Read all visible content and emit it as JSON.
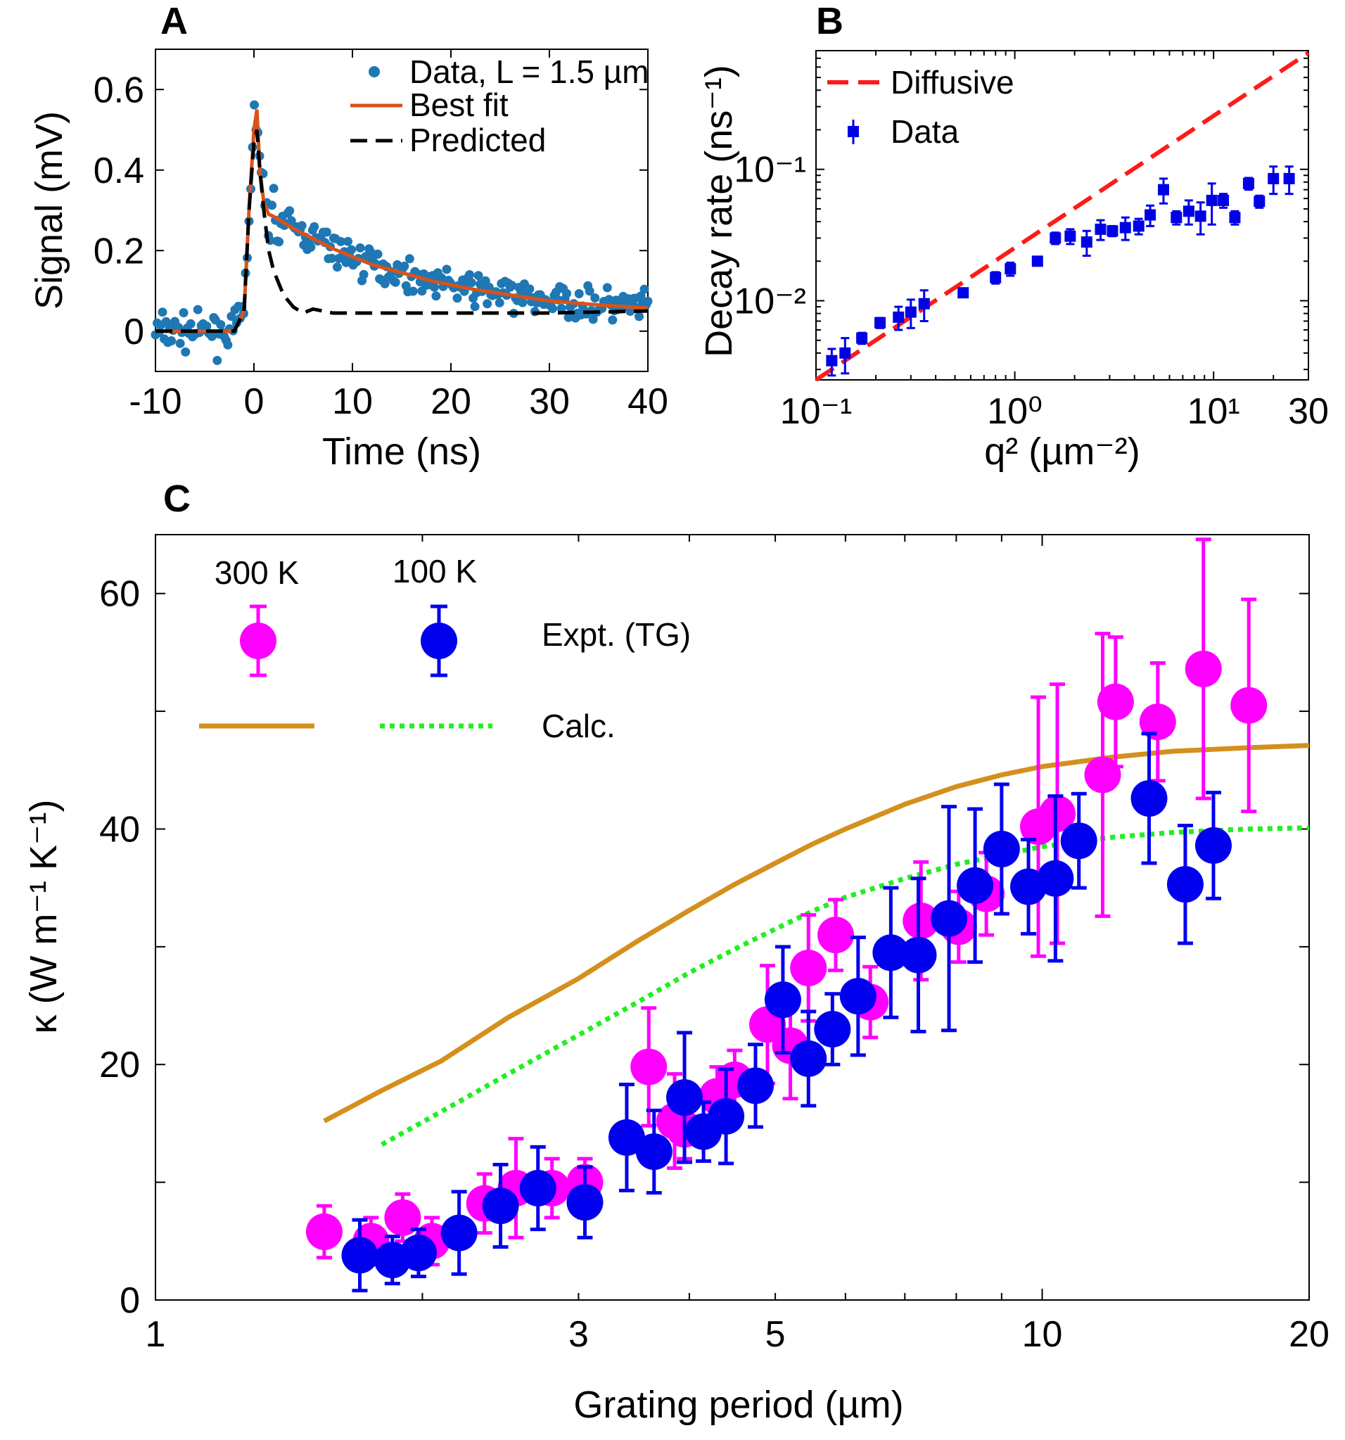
{
  "chart_data": [
    {
      "panel": "A",
      "type": "scatter",
      "xlabel": "Time (ns)",
      "ylabel": "Signal (mV)",
      "xlim": [
        -10,
        40
      ],
      "ylim": [
        -0.1,
        0.7
      ],
      "xticks": [
        -10,
        0,
        10,
        20,
        30,
        40
      ],
      "yticks": [
        0,
        0.2,
        0.4,
        0.6
      ],
      "xtick_labels": [
        "-10",
        "0",
        "10",
        "20",
        "30",
        "40"
      ],
      "ytick_labels": [
        "0",
        "0.2",
        "0.4",
        "0.6"
      ],
      "legend": {
        "placement": "top-right",
        "entries": [
          "Data, L = 1.5 µm",
          "Best fit",
          "Predicted"
        ]
      },
      "colors": {
        "data": "#1f77b4",
        "fit": "#d95319",
        "predicted": "#000000"
      },
      "data_points_summary": "noisy signal: baseline ~0 for t<-1 ns, sharp peak ~0.55 mV at t≈0, then slow decay to ~0.05 mV by 40 ns",
      "best_fit": {
        "x": [
          -10,
          -2,
          -1,
          -0.5,
          0,
          0.3,
          0.6,
          1,
          1.5,
          2,
          3,
          4,
          6,
          8,
          10,
          12,
          15,
          18,
          22,
          26,
          30,
          35,
          40
        ],
        "y": [
          0,
          0,
          0.05,
          0.3,
          0.5,
          0.55,
          0.4,
          0.32,
          0.29,
          0.285,
          0.27,
          0.255,
          0.23,
          0.205,
          0.185,
          0.165,
          0.145,
          0.125,
          0.105,
          0.09,
          0.075,
          0.065,
          0.057
        ]
      },
      "predicted": {
        "x": [
          -10,
          -2,
          -1,
          -0.5,
          0,
          0.3,
          0.6,
          1,
          1.5,
          2,
          3,
          4,
          5,
          6,
          8,
          10,
          15,
          20,
          30,
          40
        ],
        "y": [
          0,
          0,
          0.05,
          0.3,
          0.47,
          0.5,
          0.4,
          0.3,
          0.2,
          0.15,
          0.09,
          0.06,
          0.045,
          0.055,
          0.045,
          0.045,
          0.045,
          0.045,
          0.045,
          0.05
        ]
      }
    },
    {
      "panel": "B",
      "type": "scatter",
      "xscale": "log",
      "yscale": "log",
      "xlabel": "q² (µm⁻²)",
      "ylabel": "Decay rate (ns⁻¹)",
      "xlim": [
        0.1,
        30
      ],
      "ylim": [
        0.0025,
        0.8
      ],
      "xtick_labels": [
        "10⁻¹",
        "10⁰",
        "10¹",
        "30"
      ],
      "ytick_labels": [
        "10⁻¹",
        "10⁻²"
      ],
      "legend": {
        "placement": "top-left",
        "entries": [
          "Diffusive",
          "Data"
        ]
      },
      "colors": {
        "diffusive": "#ff1a1a",
        "data": "#0000e6"
      },
      "diffusive": {
        "x": [
          0.1,
          30
        ],
        "y": [
          0.0025,
          0.77
        ]
      },
      "data": {
        "x": [
          0.12,
          0.14,
          0.17,
          0.21,
          0.26,
          0.3,
          0.35,
          0.55,
          0.8,
          0.95,
          1.3,
          1.6,
          1.9,
          2.3,
          2.7,
          3.1,
          3.6,
          4.2,
          4.8,
          5.6,
          6.5,
          7.5,
          8.6,
          9.8,
          11.2,
          12.8,
          15,
          17,
          20,
          24
        ],
        "y": [
          0.0035,
          0.004,
          0.0052,
          0.0068,
          0.0075,
          0.0082,
          0.0095,
          0.0115,
          0.015,
          0.0175,
          0.02,
          0.03,
          0.031,
          0.028,
          0.035,
          0.034,
          0.036,
          0.037,
          0.045,
          0.07,
          0.043,
          0.048,
          0.044,
          0.058,
          0.058,
          0.043,
          0.078,
          0.057,
          0.085,
          0.085
        ],
        "err": [
          0.0008,
          0.0012,
          0.0005,
          0.0006,
          0.0015,
          0.002,
          0.0025,
          0.0008,
          0.0015,
          0.002,
          0.0015,
          0.003,
          0.004,
          0.006,
          0.006,
          0.003,
          0.007,
          0.005,
          0.008,
          0.015,
          0.005,
          0.01,
          0.012,
          0.02,
          0.007,
          0.005,
          0.008,
          0.006,
          0.02,
          0.02
        ]
      }
    },
    {
      "panel": "C",
      "type": "scatter",
      "xscale": "log",
      "xlabel": "Grating period (µm)",
      "ylabel": "κ (W m⁻¹ K⁻¹)",
      "xlim": [
        1,
        20
      ],
      "ylim": [
        0,
        65
      ],
      "xtick_labels": [
        "1",
        "3",
        "5",
        "10",
        "20"
      ],
      "ytick_labels": [
        "0",
        "20",
        "40",
        "60"
      ],
      "legend": {
        "placement": "top-left",
        "headers": [
          "300 K",
          "100 K"
        ],
        "entries": [
          "Expt. (TG)",
          "Calc."
        ]
      },
      "colors": {
        "k300": "#ff00ff",
        "k100": "#0000ee",
        "calc300": "#d4901d",
        "calc100": "#22ee22"
      },
      "series": [
        {
          "name": "300 K Expt. (TG)",
          "x": [
            1.55,
            1.75,
            1.9,
            2.05,
            2.35,
            2.55,
            2.8,
            3.05,
            3.6,
            3.85,
            3.95,
            4.3,
            4.5,
            4.9,
            5.2,
            5.45,
            5.85,
            6.4,
            7.3,
            8.05,
            8.65,
            9.9,
            10.4,
            11.7,
            12.1,
            13.5,
            15.2,
            17.1
          ],
          "y": [
            5.8,
            5.0,
            7.0,
            5.0,
            8.2,
            9.5,
            9.5,
            10.0,
            19.8,
            15.2,
            14.5,
            17.3,
            18.7,
            23.4,
            21.6,
            28.2,
            31.0,
            25.3,
            32.2,
            31.7,
            34.5,
            40.2,
            41.3,
            44.6,
            50.8,
            49.1,
            53.6,
            50.5
          ],
          "err": [
            2.2,
            2.0,
            2.0,
            2.0,
            2.5,
            4.2,
            2.5,
            2.0,
            5.0,
            4.0,
            2.5,
            2.5,
            2.5,
            5.0,
            4.5,
            4.5,
            3.0,
            3.0,
            5.0,
            3.0,
            3.5,
            11.0,
            11.0,
            12.0,
            5.5,
            5.0,
            11.0,
            9.0
          ]
        },
        {
          "name": "100 K Expt. (TG)",
          "x": [
            1.7,
            1.85,
            1.98,
            2.2,
            2.45,
            2.7,
            3.05,
            3.4,
            3.65,
            3.95,
            4.15,
            4.4,
            4.75,
            5.1,
            5.45,
            5.8,
            6.2,
            6.75,
            7.25,
            7.85,
            8.4,
            9.0,
            9.65,
            10.35,
            11.0,
            13.2,
            14.5,
            15.6
          ],
          "y": [
            3.8,
            3.4,
            4.0,
            5.7,
            8.0,
            9.5,
            8.3,
            13.8,
            12.6,
            17.2,
            14.3,
            15.6,
            18.2,
            25.5,
            20.5,
            23.0,
            25.8,
            29.5,
            29.3,
            32.4,
            35.2,
            38.3,
            35.1,
            35.8,
            39.0,
            42.6,
            35.3,
            38.6
          ],
          "err": [
            3.0,
            2.0,
            2.0,
            3.5,
            3.5,
            3.5,
            3.0,
            4.5,
            3.5,
            5.5,
            2.5,
            4.0,
            3.5,
            4.5,
            4.0,
            3.0,
            5.0,
            5.5,
            6.5,
            9.5,
            6.5,
            5.5,
            4.0,
            7.0,
            4.0,
            5.5,
            5.0,
            4.5
          ]
        },
        {
          "name": "300 K Calc.",
          "x": [
            1.55,
            1.8,
            2.1,
            2.5,
            3.0,
            3.5,
            4.0,
            4.5,
            5.0,
            5.5,
            6.0,
            7.0,
            8.0,
            9.0,
            10.0,
            12.0,
            14.0,
            17.0,
            20.0
          ],
          "y": [
            15.2,
            17.8,
            20.3,
            24.0,
            27.3,
            30.5,
            33.1,
            35.3,
            37.1,
            38.7,
            40.0,
            42.1,
            43.6,
            44.6,
            45.3,
            46.1,
            46.6,
            46.9,
            47.1
          ]
        },
        {
          "name": "100 K Calc.",
          "x": [
            1.8,
            2.1,
            2.5,
            3.0,
            3.5,
            4.0,
            4.5,
            5.0,
            5.5,
            6.0,
            7.0,
            8.0,
            9.0,
            10.0,
            12.0,
            14.0,
            17.0,
            20.0
          ],
          "y": [
            13.2,
            16.0,
            19.2,
            22.5,
            25.3,
            27.8,
            29.8,
            31.5,
            33.0,
            34.2,
            35.8,
            37.0,
            37.8,
            38.5,
            39.3,
            39.7,
            40.0,
            40.1
          ]
        }
      ]
    }
  ]
}
